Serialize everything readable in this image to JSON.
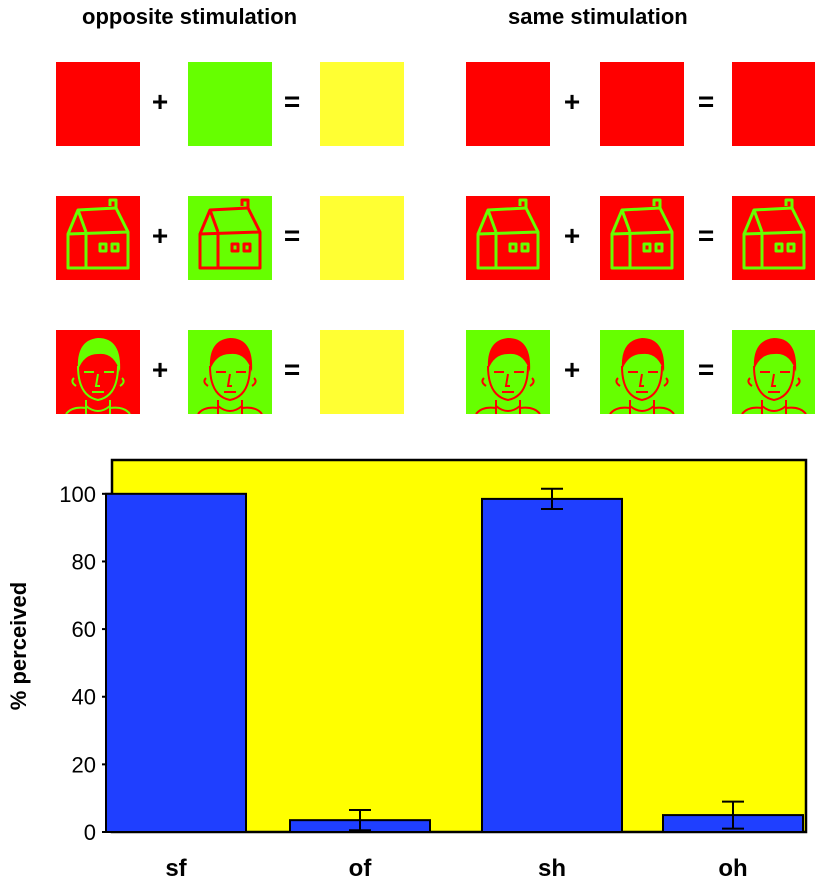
{
  "figure": {
    "titles": {
      "opposite": "opposite stimulation",
      "same": "same stimulation"
    },
    "operators": {
      "plus": "+",
      "equals": "="
    },
    "colors": {
      "red": "#ff0000",
      "green": "#66ff00",
      "yellow": "#ffff33",
      "outline": "#7a1a1a",
      "bar": "#1f3fff",
      "plot_bg": "#ffff00"
    },
    "rows": [
      {
        "name": "color",
        "opposite": [
          {
            "bg": "red",
            "icon": "none"
          },
          {
            "bg": "green",
            "icon": "none"
          },
          {
            "bg": "yellow",
            "icon": "none"
          }
        ],
        "same": [
          {
            "bg": "red",
            "icon": "none"
          },
          {
            "bg": "red",
            "icon": "none"
          },
          {
            "bg": "red",
            "icon": "none"
          }
        ]
      },
      {
        "name": "house",
        "opposite": [
          {
            "bg": "red",
            "icon": "house-icon",
            "ink": "green"
          },
          {
            "bg": "green",
            "icon": "house-icon",
            "ink": "red"
          },
          {
            "bg": "yellow",
            "icon": "none"
          }
        ],
        "same": [
          {
            "bg": "red",
            "icon": "house-icon",
            "ink": "green"
          },
          {
            "bg": "red",
            "icon": "house-icon",
            "ink": "green"
          },
          {
            "bg": "red",
            "icon": "house-icon",
            "ink": "green"
          }
        ]
      },
      {
        "name": "face",
        "opposite": [
          {
            "bg": "red",
            "icon": "face-icon",
            "ink": "green"
          },
          {
            "bg": "green",
            "icon": "face-icon",
            "ink": "red"
          },
          {
            "bg": "yellow",
            "icon": "none"
          }
        ],
        "same": [
          {
            "bg": "green",
            "icon": "face-icon",
            "ink": "red"
          },
          {
            "bg": "green",
            "icon": "face-icon",
            "ink": "red"
          },
          {
            "bg": "green",
            "icon": "face-icon",
            "ink": "red"
          }
        ]
      }
    ]
  },
  "chart_data": {
    "type": "bar",
    "categories": [
      "sf",
      "of",
      "sh",
      "oh"
    ],
    "values": [
      100,
      3.5,
      98.5,
      5
    ],
    "errors": [
      0,
      3,
      3,
      4
    ],
    "ylabel": "% perceived",
    "xlabel": "",
    "ylim": [
      0,
      110
    ],
    "yticks": [
      0,
      20,
      40,
      60,
      80,
      100
    ],
    "grid": false
  }
}
